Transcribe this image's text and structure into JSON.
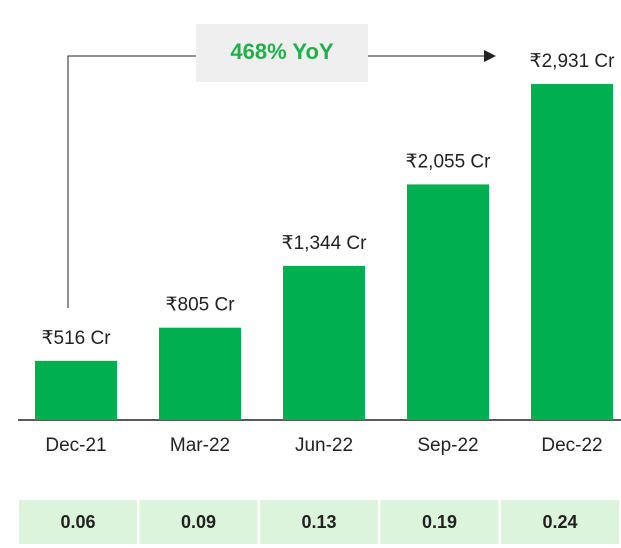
{
  "chart_data": {
    "type": "bar",
    "annotation": "468% YoY",
    "categories": [
      "Dec-21",
      "Mar-22",
      "Jun-22",
      "Sep-22",
      "Dec-22"
    ],
    "values": [
      516,
      805,
      1344,
      2055,
      2931
    ],
    "value_labels": [
      "₹516 Cr",
      "₹805 Cr",
      "₹1,344 Cr",
      "₹2,055 Cr",
      "₹2,931 Cr"
    ],
    "color": "#00b050",
    "table_row": [
      0.06,
      0.09,
      0.13,
      0.19,
      0.24
    ]
  }
}
